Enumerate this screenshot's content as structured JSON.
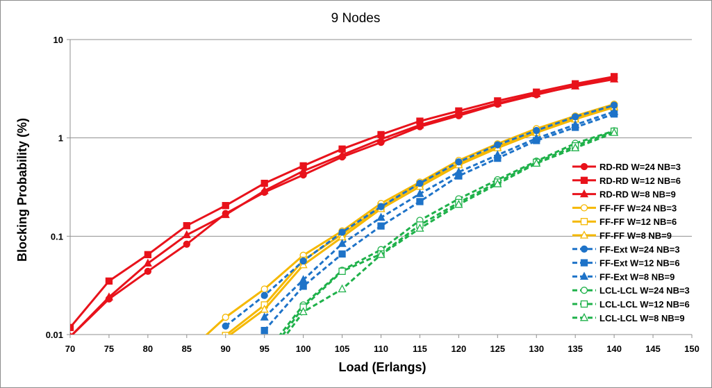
{
  "chart_data": {
    "type": "line",
    "title": "9 Nodes",
    "xlabel": "Load (Erlangs)",
    "ylabel": "Blocking Probability (%)",
    "xlim": [
      70,
      150
    ],
    "ylim": [
      0.01,
      10
    ],
    "yscale": "log",
    "x_ticks": [
      "70",
      "75",
      "80",
      "85",
      "90",
      "95",
      "100",
      "105",
      "110",
      "115",
      "120",
      "125",
      "130",
      "135",
      "140",
      "145",
      "150"
    ],
    "y_ticks": [
      "10",
      "1",
      "0.1",
      "0.01"
    ],
    "grid": "horizontal",
    "legend_position": "right",
    "series": [
      {
        "name": "RD-RD W=24 NB=3",
        "color": "#e8121b",
        "dash": "solid",
        "marker": "circle",
        "fill": true,
        "x": [
          70,
          75,
          80,
          85,
          90,
          95,
          100,
          105,
          110,
          115,
          120,
          125,
          130,
          135,
          140
        ],
        "y": [
          0.0095,
          0.023,
          0.044,
          0.083,
          0.17,
          0.28,
          0.42,
          0.64,
          0.9,
          1.3,
          1.68,
          2.2,
          2.75,
          3.4,
          4.1
        ]
      },
      {
        "name": "RD-RD W=12 NB=6",
        "color": "#e8121b",
        "dash": "solid",
        "marker": "square",
        "fill": true,
        "x": [
          70,
          75,
          80,
          85,
          90,
          95,
          100,
          105,
          110,
          115,
          120,
          125,
          130,
          135,
          140
        ],
        "y": [
          0.0118,
          0.035,
          0.065,
          0.128,
          0.205,
          0.345,
          0.52,
          0.77,
          1.08,
          1.48,
          1.88,
          2.38,
          2.92,
          3.55,
          4.2
        ]
      },
      {
        "name": "RD-RD W=8 NB=9",
        "color": "#e8121b",
        "dash": "solid",
        "marker": "triangle",
        "fill": true,
        "x": [
          70,
          75,
          80,
          85,
          90,
          95,
          100,
          105,
          110,
          115,
          120,
          125,
          130,
          135,
          140
        ],
        "y": [
          0.0095,
          0.024,
          0.053,
          0.103,
          0.165,
          0.29,
          0.46,
          0.67,
          0.97,
          1.35,
          1.75,
          2.25,
          2.8,
          3.35,
          3.95
        ]
      },
      {
        "name": "FF-FF W=24 NB=3",
        "color": "#f5b800",
        "dash": "solid",
        "marker": "circle",
        "fill": false,
        "x": [
          85,
          90,
          95,
          100,
          105,
          110,
          115,
          120,
          125,
          130,
          135,
          140
        ],
        "y": [
          0.0065,
          0.015,
          0.029,
          0.064,
          0.113,
          0.215,
          0.355,
          0.59,
          0.87,
          1.24,
          1.67,
          2.2
        ]
      },
      {
        "name": "FF-FF W=12 NB=6",
        "color": "#f5b800",
        "dash": "solid",
        "marker": "square",
        "fill": false,
        "x": [
          85,
          90,
          95,
          100,
          105,
          110,
          115,
          120,
          125,
          130,
          135,
          140
        ],
        "y": [
          0.005,
          0.0098,
          0.02,
          0.057,
          0.105,
          0.2,
          0.34,
          0.55,
          0.82,
          1.17,
          1.6,
          2.1
        ]
      },
      {
        "name": "FF-FF W=8 NB=9",
        "color": "#f5b800",
        "dash": "solid",
        "marker": "triangle",
        "fill": false,
        "x": [
          85,
          90,
          95,
          100,
          105,
          110,
          115,
          120,
          125,
          130,
          135,
          140
        ],
        "y": [
          0.0048,
          0.0092,
          0.018,
          0.051,
          0.098,
          0.19,
          0.32,
          0.53,
          0.79,
          1.13,
          1.55,
          2.05
        ]
      },
      {
        "name": "FF-Ext W=24 NB=3",
        "color": "#1e73c8",
        "dash": "dashed",
        "marker": "circle",
        "fill": true,
        "x": [
          90,
          95,
          100,
          105,
          110,
          115,
          120,
          125,
          130,
          135,
          140
        ],
        "y": [
          0.0122,
          0.025,
          0.056,
          0.11,
          0.2,
          0.345,
          0.57,
          0.85,
          1.19,
          1.64,
          2.15
        ]
      },
      {
        "name": "FF-Ext W=12 NB=6",
        "color": "#1e73c8",
        "dash": "dashed",
        "marker": "square",
        "fill": true,
        "x": [
          95,
          100,
          105,
          110,
          115,
          120,
          125,
          130,
          135,
          140
        ],
        "y": [
          0.011,
          0.031,
          0.066,
          0.127,
          0.225,
          0.41,
          0.62,
          0.94,
          1.28,
          1.75
        ]
      },
      {
        "name": "FF-Ext W=8 NB=9",
        "color": "#1e73c8",
        "dash": "dashed",
        "marker": "triangle",
        "fill": true,
        "x": [
          95,
          100,
          105,
          110,
          115,
          120,
          125,
          130,
          135,
          140
        ],
        "y": [
          0.015,
          0.036,
          0.084,
          0.155,
          0.27,
          0.45,
          0.67,
          0.99,
          1.36,
          1.85
        ]
      },
      {
        "name": "LCL-LCL W=24 NB=3",
        "color": "#1fb14a",
        "dash": "dashed",
        "marker": "circle",
        "fill": false,
        "x": [
          95,
          100,
          105,
          110,
          115,
          120,
          125,
          130,
          135,
          140
        ],
        "y": [
          0.0062,
          0.02,
          0.045,
          0.073,
          0.145,
          0.24,
          0.375,
          0.58,
          0.88,
          1.18
        ]
      },
      {
        "name": "LCL-LCL W=12 NB=6",
        "color": "#1fb14a",
        "dash": "dashed",
        "marker": "square",
        "fill": false,
        "x": [
          95,
          100,
          105,
          110,
          115,
          120,
          125,
          130,
          135,
          140
        ],
        "y": [
          0.0055,
          0.019,
          0.044,
          0.066,
          0.13,
          0.22,
          0.355,
          0.565,
          0.83,
          1.17
        ]
      },
      {
        "name": "LCL-LCL W=8 NB=9",
        "color": "#1fb14a",
        "dash": "dashed",
        "marker": "triangle",
        "fill": false,
        "x": [
          95,
          100,
          105,
          110,
          115,
          120,
          125,
          130,
          135,
          140
        ],
        "y": [
          0.005,
          0.017,
          0.029,
          0.065,
          0.12,
          0.21,
          0.34,
          0.55,
          0.79,
          1.13
        ]
      }
    ]
  }
}
